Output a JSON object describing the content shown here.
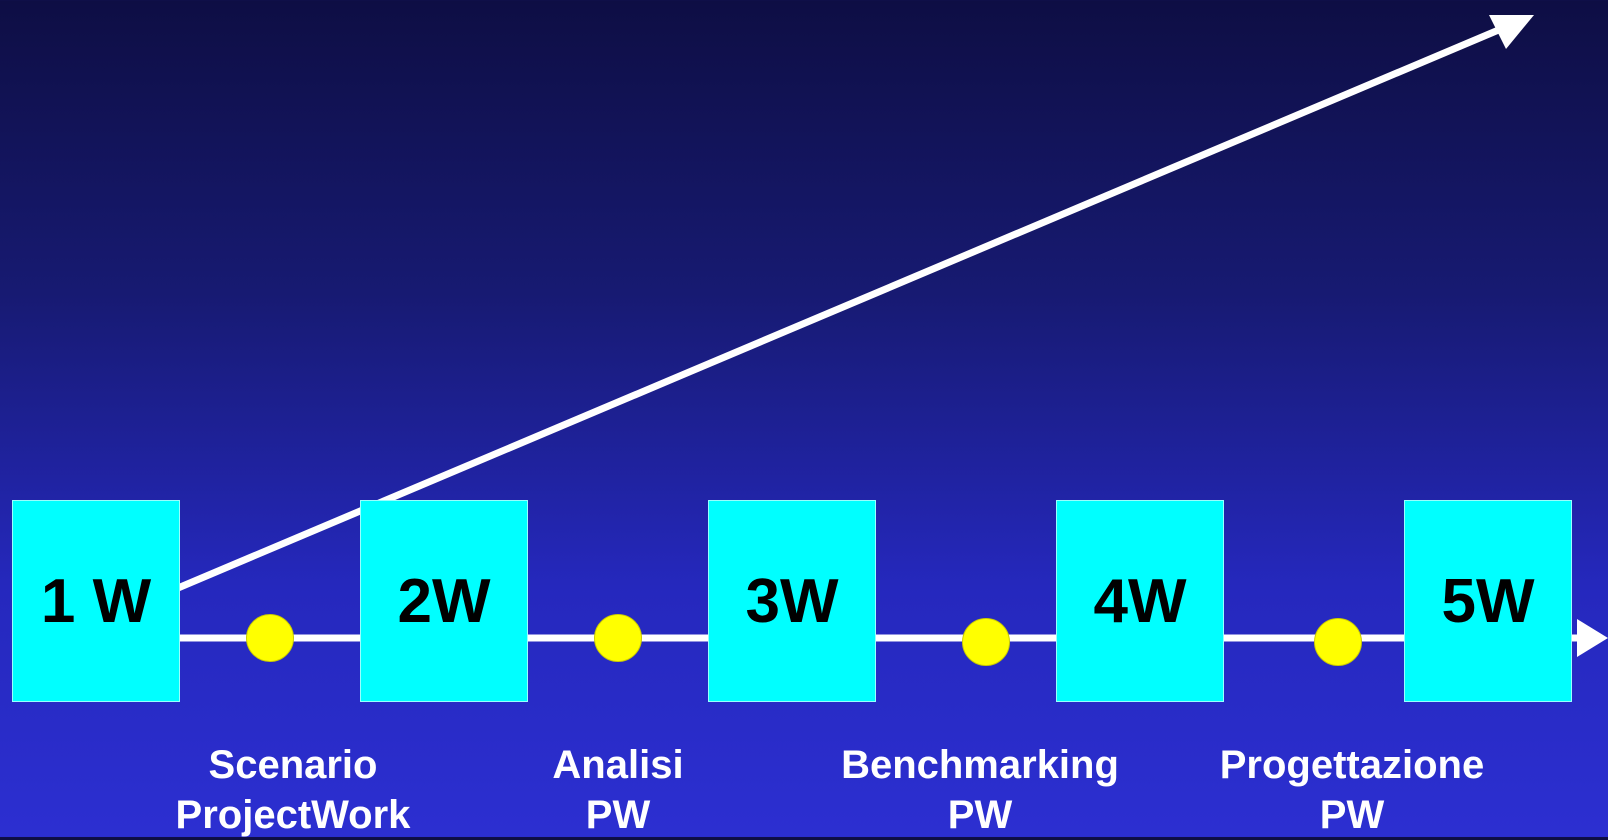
{
  "diagram": {
    "weeks": [
      {
        "label": "1 W"
      },
      {
        "label": "2W"
      },
      {
        "label": "3W"
      },
      {
        "label": "4W"
      },
      {
        "label": "5W"
      }
    ],
    "phases": [
      {
        "line1": "Scenario",
        "line2": "ProjectWork"
      },
      {
        "line1": "Analisi",
        "line2": "PW"
      },
      {
        "line1": "Benchmarking",
        "line2": "PW"
      },
      {
        "line1": "Progettazione",
        "line2": "PW"
      }
    ]
  },
  "colors": {
    "background_top": "#0e0e44",
    "background_bottom": "#2c2fd1",
    "box_fill": "#00ffff",
    "milestone_dot": "#ffff00",
    "arrow": "#ffffff",
    "phase_text": "#ffffff",
    "week_text": "#000000"
  }
}
